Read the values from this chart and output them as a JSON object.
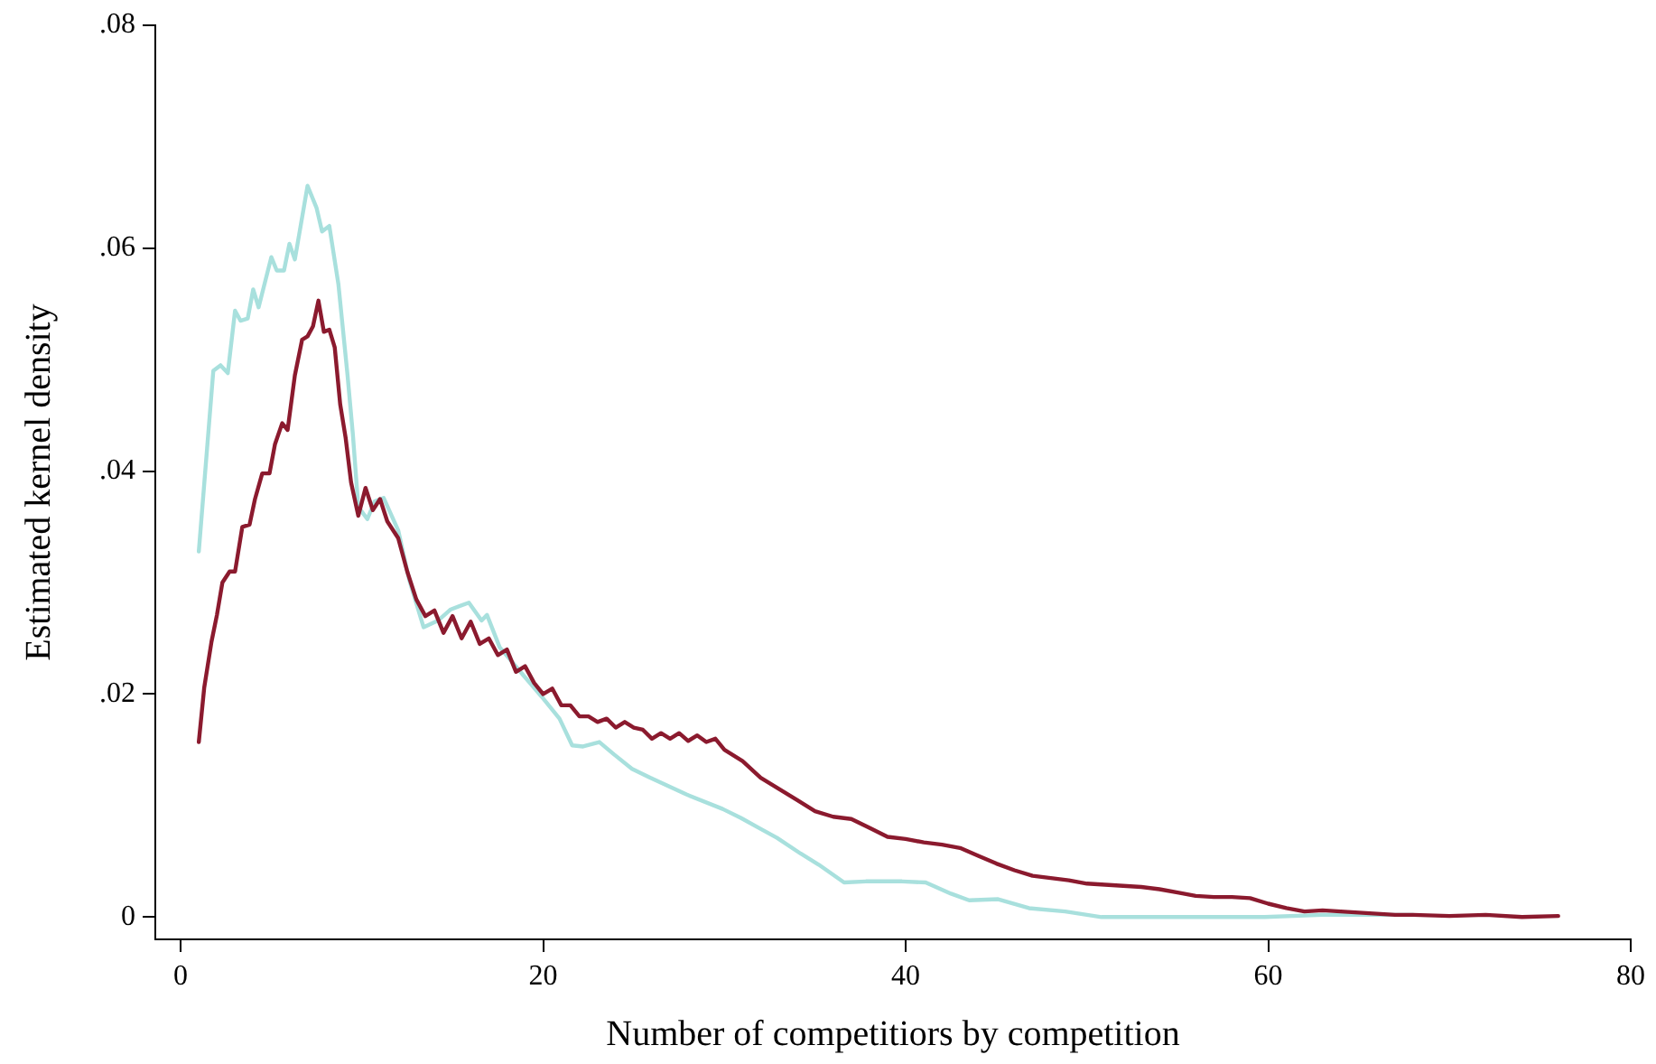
{
  "chart_data": {
    "type": "line",
    "xlabel": "Number of competitiors by competition",
    "ylabel": "Estimated kernel density",
    "xlim": [
      -1.4,
      80
    ],
    "ylim": [
      -0.002,
      0.08
    ],
    "xticks": [
      0,
      20,
      40,
      60,
      80
    ],
    "yticks": [
      {
        "value": 0,
        "label": "0"
      },
      {
        "value": 0.02,
        "label": ".02"
      },
      {
        "value": 0.04,
        "label": ".04"
      },
      {
        "value": 0.06,
        "label": ".06"
      },
      {
        "value": 0.08,
        "label": ".08"
      }
    ],
    "grid": false,
    "legend": false,
    "marker": "none",
    "line_style": "solid",
    "series": [
      {
        "color": "#8b1a2e",
        "x": [
          1.0,
          1.3,
          1.7,
          2.0,
          2.3,
          2.7,
          3.0,
          3.4,
          3.8,
          4.1,
          4.5,
          4.9,
          5.2,
          5.6,
          5.9,
          6.3,
          6.7,
          7.0,
          7.3,
          7.6,
          7.9,
          8.2,
          8.5,
          8.8,
          9.1,
          9.4,
          9.8,
          10.2,
          10.6,
          11.0,
          11.4,
          12.0,
          12.5,
          13.0,
          13.5,
          14.0,
          14.5,
          15.0,
          15.5,
          16.0,
          16.5,
          17.0,
          17.5,
          18.0,
          18.5,
          19.0,
          19.5,
          20.0,
          20.5,
          21,
          21.5,
          22,
          22.5,
          23,
          23.5,
          24,
          24.5,
          25,
          25.5,
          26,
          26.5,
          27,
          27.5,
          28,
          28.5,
          29,
          29.5,
          30,
          31,
          32,
          33,
          34,
          35,
          36,
          37,
          38,
          39,
          40,
          41,
          42,
          43,
          44,
          45,
          46,
          47,
          48,
          49,
          50,
          51,
          52,
          53,
          54,
          55,
          56,
          57,
          58,
          59,
          60,
          61,
          62,
          63,
          64,
          65,
          66,
          67,
          68,
          70,
          72,
          74,
          76
        ],
        "values": [
          0.0157,
          0.0206,
          0.0247,
          0.0271,
          0.03,
          0.031,
          0.031,
          0.035,
          0.0352,
          0.0375,
          0.0398,
          0.0398,
          0.0424,
          0.0443,
          0.0437,
          0.0486,
          0.0518,
          0.0521,
          0.053,
          0.0553,
          0.0525,
          0.0527,
          0.0511,
          0.046,
          0.043,
          0.039,
          0.036,
          0.0385,
          0.0365,
          0.0375,
          0.0355,
          0.034,
          0.031,
          0.0285,
          0.027,
          0.0275,
          0.0255,
          0.027,
          0.025,
          0.0265,
          0.0245,
          0.025,
          0.0235,
          0.024,
          0.022,
          0.0225,
          0.021,
          0.02,
          0.0205,
          0.019,
          0.019,
          0.018,
          0.018,
          0.0175,
          0.0178,
          0.017,
          0.0175,
          0.017,
          0.0168,
          0.016,
          0.0165,
          0.016,
          0.0165,
          0.0158,
          0.0163,
          0.0157,
          0.016,
          0.015,
          0.014,
          0.0125,
          0.0115,
          0.0105,
          0.0095,
          0.009,
          0.0088,
          0.008,
          0.0072,
          0.007,
          0.0067,
          0.0065,
          0.0062,
          0.0055,
          0.0048,
          0.0042,
          0.0037,
          0.0035,
          0.0033,
          0.003,
          0.0029,
          0.0028,
          0.0027,
          0.0025,
          0.0022,
          0.0019,
          0.0018,
          0.0018,
          0.0017,
          0.0012,
          0.0008,
          0.0005,
          0.0006,
          0.0005,
          0.0004,
          0.0003,
          0.0002,
          0.0002,
          0.0001,
          0.0002,
          0.0,
          0.0001
        ]
      },
      {
        "color": "#a8e0dd",
        "x": [
          1.0,
          1.8,
          2.2,
          2.6,
          3.0,
          3.3,
          3.7,
          4.0,
          4.3,
          5.0,
          5.3,
          5.7,
          6.0,
          6.3,
          7.0,
          7.5,
          7.8,
          8.2,
          8.7,
          9.2,
          9.5,
          9.8,
          10.3,
          10.7,
          11.2,
          12.0,
          12.6,
          13.4,
          14.2,
          14.9,
          15.9,
          16.6,
          16.9,
          17.6,
          18.9,
          19.9,
          20.9,
          21.6,
          22.2,
          23.1,
          23.9,
          24.9,
          25.9,
          27.9,
          29.9,
          30.9,
          31.9,
          32.9,
          34.2,
          35.2,
          36.6,
          37.8,
          39.8,
          41.1,
          42.5,
          43.5,
          45.1,
          46.8,
          48.8,
          50.8,
          54.8,
          59.8,
          63.0,
          68.0
        ],
        "values": [
          0.0328,
          0.049,
          0.0495,
          0.0488,
          0.0544,
          0.0535,
          0.0537,
          0.0563,
          0.0547,
          0.0592,
          0.058,
          0.058,
          0.0604,
          0.059,
          0.0656,
          0.0636,
          0.0615,
          0.062,
          0.0568,
          0.0487,
          0.0433,
          0.0368,
          0.0357,
          0.0373,
          0.0376,
          0.0347,
          0.0303,
          0.026,
          0.0266,
          0.0276,
          0.0282,
          0.0266,
          0.0271,
          0.0242,
          0.0217,
          0.0198,
          0.0178,
          0.0154,
          0.0153,
          0.0157,
          0.0146,
          0.0133,
          0.0125,
          0.011,
          0.0097,
          0.0089,
          0.008,
          0.0071,
          0.0057,
          0.0047,
          0.0031,
          0.0032,
          0.0032,
          0.0031,
          0.0021,
          0.0015,
          0.0016,
          0.0008,
          0.0005,
          0.0,
          0.0,
          0.0,
          0.0002,
          0.0002
        ]
      }
    ]
  }
}
